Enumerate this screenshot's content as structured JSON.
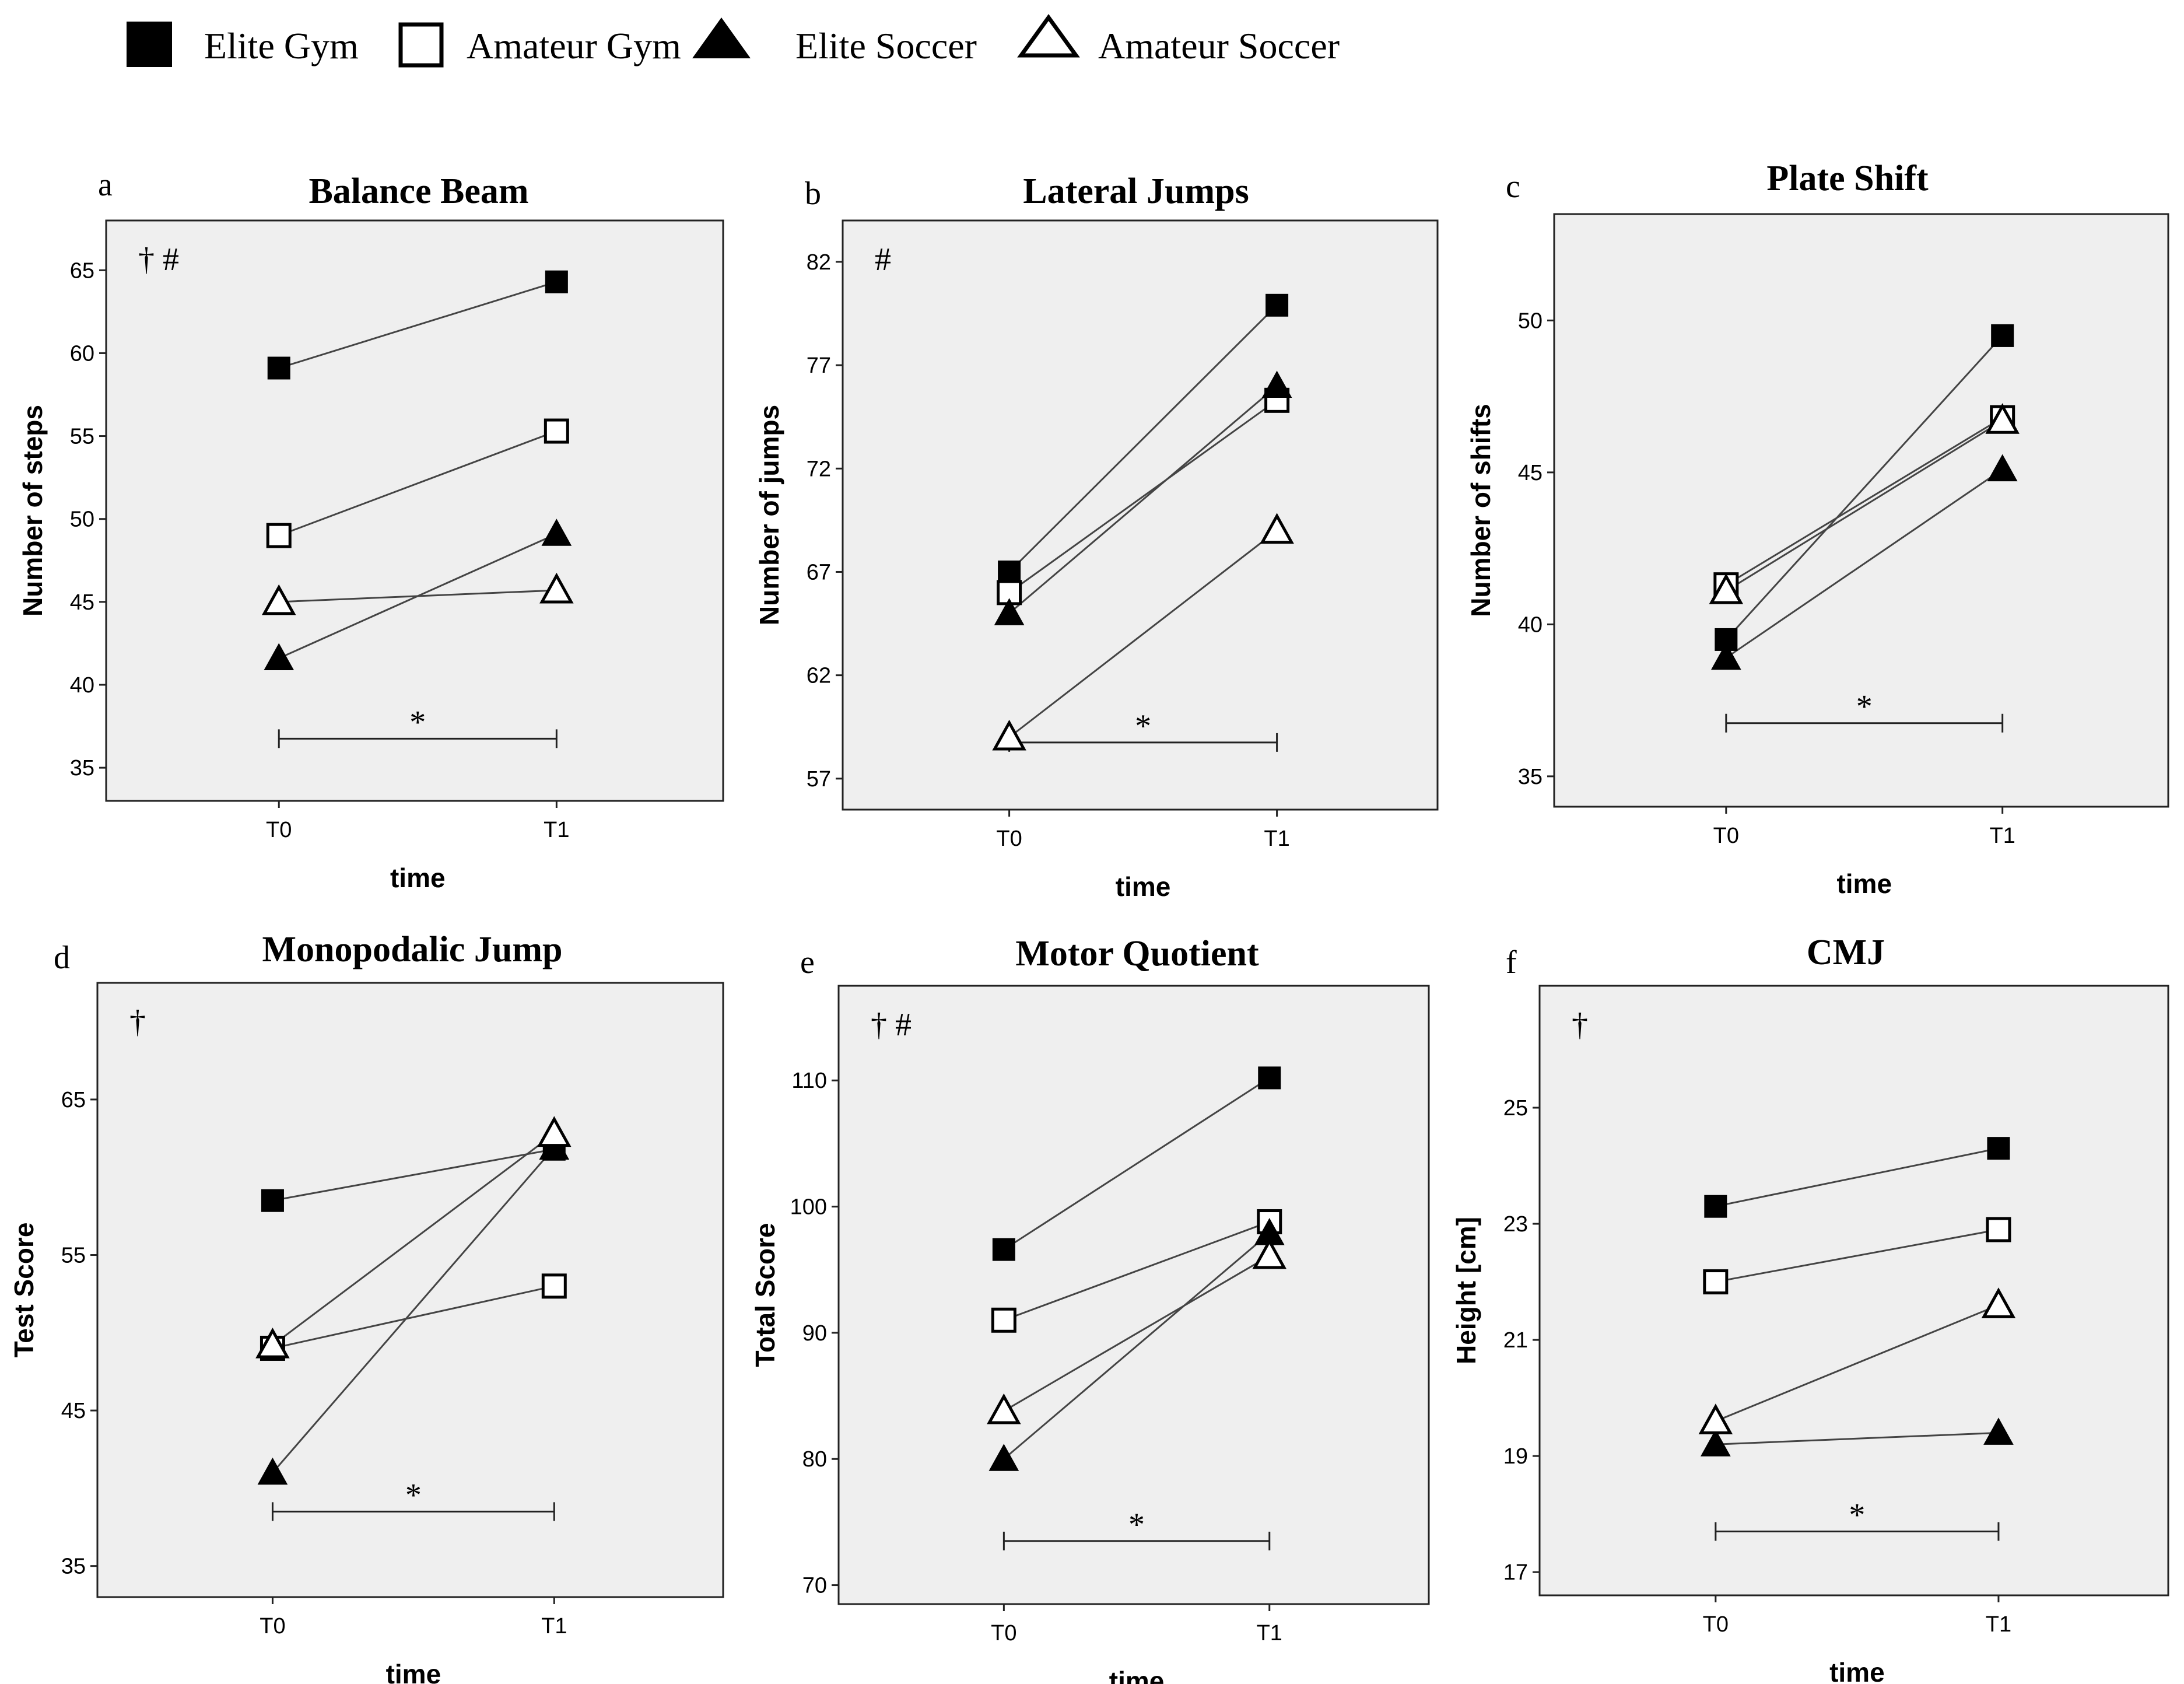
{
  "legend": [
    {
      "name": "Elite Gym",
      "marker": "square-filled"
    },
    {
      "name": "Amateur Gym",
      "marker": "square-open"
    },
    {
      "name": "Elite Soccer",
      "marker": "triangle-filled"
    },
    {
      "name": "Amateur Soccer",
      "marker": "triangle-open"
    }
  ],
  "chart_data": [
    {
      "type": "line",
      "letter": "a",
      "title": "Balance Beam",
      "xlabel": "time",
      "ylabel": "Number of steps",
      "categories": [
        "T0",
        "T1"
      ],
      "ylim": [
        33,
        68
      ],
      "yticks": [
        35,
        40,
        45,
        50,
        55,
        60,
        65
      ],
      "annotation": "† #",
      "significance": "*",
      "series": [
        {
          "name": "Elite Gym",
          "values": [
            59.1,
            64.3
          ]
        },
        {
          "name": "Amateur Gym",
          "values": [
            49.0,
            55.3
          ]
        },
        {
          "name": "Elite Soccer",
          "values": [
            41.6,
            49.1
          ]
        },
        {
          "name": "Amateur Soccer",
          "values": [
            45.0,
            45.7
          ]
        }
      ]
    },
    {
      "type": "line",
      "letter": "b",
      "title": "Lateral Jumps",
      "xlabel": "time",
      "ylabel": "Number of jumps",
      "categories": [
        "T0",
        "T1"
      ],
      "ylim": [
        55.5,
        84
      ],
      "yticks": [
        57,
        62,
        67,
        72,
        77,
        82
      ],
      "annotation": "#",
      "significance": "*",
      "series": [
        {
          "name": "Elite Gym",
          "values": [
            67.0,
            79.9
          ]
        },
        {
          "name": "Amateur Gym",
          "values": [
            66.0,
            75.3
          ]
        },
        {
          "name": "Elite Soccer",
          "values": [
            65.0,
            76.0
          ]
        },
        {
          "name": "Amateur Soccer",
          "values": [
            59.0,
            69.0
          ]
        }
      ]
    },
    {
      "type": "line",
      "letter": "c",
      "title": "Plate Shift",
      "xlabel": "time",
      "ylabel": "Number of shifts",
      "categories": [
        "T0",
        "T1"
      ],
      "ylim": [
        34,
        53.5
      ],
      "yticks": [
        35,
        40,
        45,
        50
      ],
      "annotation": "",
      "significance": "*",
      "series": [
        {
          "name": "Elite Gym",
          "values": [
            39.5,
            49.5
          ]
        },
        {
          "name": "Amateur Gym",
          "values": [
            41.3,
            46.8
          ]
        },
        {
          "name": "Elite Soccer",
          "values": [
            38.9,
            45.1
          ]
        },
        {
          "name": "Amateur Soccer",
          "values": [
            41.1,
            46.7
          ]
        }
      ]
    },
    {
      "type": "line",
      "letter": "d",
      "title": "Monopodalic Jump",
      "xlabel": "time",
      "ylabel": "Test Score",
      "categories": [
        "T0",
        "T1"
      ],
      "ylim": [
        33,
        72.5
      ],
      "yticks": [
        35,
        45,
        55,
        65
      ],
      "annotation": "†",
      "significance": "*",
      "series": [
        {
          "name": "Elite Gym",
          "values": [
            58.5,
            61.8
          ]
        },
        {
          "name": "Amateur Gym",
          "values": [
            49.0,
            53.0
          ]
        },
        {
          "name": "Elite Soccer",
          "values": [
            41.0,
            61.9
          ]
        },
        {
          "name": "Amateur Soccer",
          "values": [
            49.2,
            62.8
          ]
        }
      ]
    },
    {
      "type": "line",
      "letter": "e",
      "title": "Motor Quotient",
      "xlabel": "time",
      "ylabel": "Total Score",
      "categories": [
        "T0",
        "T1"
      ],
      "ylim": [
        68.5,
        117.5
      ],
      "yticks": [
        70,
        80,
        90,
        100,
        110
      ],
      "annotation": "† #",
      "significance": "*",
      "series": [
        {
          "name": "Elite Gym",
          "values": [
            96.6,
            110.2
          ]
        },
        {
          "name": "Amateur Gym",
          "values": [
            91.0,
            98.8
          ]
        },
        {
          "name": "Elite Soccer",
          "values": [
            80.0,
            97.9
          ]
        },
        {
          "name": "Amateur Soccer",
          "values": [
            83.8,
            96.1
          ]
        }
      ]
    },
    {
      "type": "line",
      "letter": "f",
      "title": "CMJ",
      "xlabel": "time",
      "ylabel": "Height [cm]",
      "categories": [
        "T0",
        "T1"
      ],
      "ylim": [
        16.6,
        27.1
      ],
      "yticks": [
        17,
        19,
        21,
        23,
        25
      ],
      "annotation": "†",
      "significance": "*",
      "series": [
        {
          "name": "Elite Gym",
          "values": [
            23.3,
            24.3
          ]
        },
        {
          "name": "Amateur Gym",
          "values": [
            22.0,
            22.9
          ]
        },
        {
          "name": "Elite Soccer",
          "values": [
            19.2,
            19.4
          ]
        },
        {
          "name": "Amateur Soccer",
          "values": [
            19.6,
            21.6
          ]
        }
      ]
    }
  ]
}
